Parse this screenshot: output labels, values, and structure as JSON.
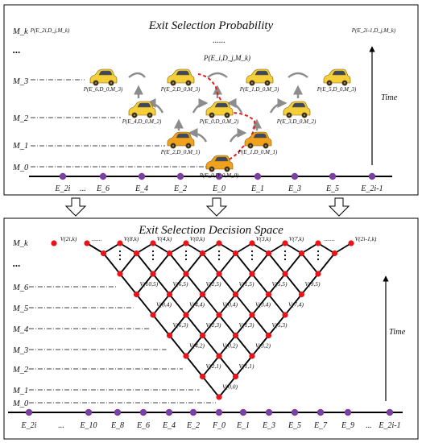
{
  "top": {
    "title": "Exit Selection Probability",
    "dots": "......",
    "prob_label": "P(E_i,D_j,M_k)",
    "time_label": "Time",
    "levels": [
      "M_k",
      "...",
      "M_3",
      "M_2",
      "M_1",
      "M_0"
    ],
    "exits": [
      "E_2i",
      "...",
      "E_6",
      "E_4",
      "E_2",
      "E_0",
      "E_1",
      "E_3",
      "E_5",
      "E_2i-1"
    ],
    "corner_labels": [
      "P(E_2i,D_j,M_k)",
      "P(E_2i-1,D_j,M_k)"
    ],
    "car_labels": {
      "m0": "P(E_0,D_0,M_0)",
      "m1": [
        "P(E_2,D_0,M_1)",
        "P(E_1,D_0,M_1)"
      ],
      "m2": [
        "P(E_4,D_0,M_2)",
        "P(E_0,D_0,M_2)",
        "P(E_3,D_0,M_2)"
      ],
      "m3": [
        "P(E_6,D_0,M_3)",
        "P(E_2,D_0,M_3)",
        "P(E_1,D_0,M_3)",
        "P(E_5,D_0,M_3)"
      ]
    }
  },
  "bottom": {
    "title": "Exit Selection Decision Space",
    "time_label": "Time",
    "levels": [
      "M_k",
      "...",
      "M_6",
      "M_5",
      "M_4",
      "M_3",
      "M_2",
      "M_1",
      "M_0"
    ],
    "exits": [
      "E_2i",
      "...",
      "E_10",
      "E_8",
      "E_6",
      "E_4",
      "E_2",
      "F_0",
      "E_1",
      "E_3",
      "E_5",
      "E_7",
      "E_9",
      "...",
      "E_2i-1"
    ],
    "top_labels": [
      "V(2i,k)",
      ".......",
      "V(8,k)",
      "V(4,k)",
      "V(0,k)",
      "V(3,k)",
      "V(7,k)",
      ".......",
      "V(2i-1,k)"
    ],
    "node_labels": [
      "V(10,5)",
      "V(6,5)",
      "V(2,5)",
      "V(1,5)",
      "V(5,5)",
      "V(9,5)",
      "V(8,4)",
      "V(4,4)",
      "V(0,4)",
      "V(3,4)",
      "V(7,4)",
      "V(6,3)",
      "V(2,3)",
      "V(1,3)",
      "V(5,3)",
      "V(4,2)",
      "V(0,2)",
      "V(3,2)",
      "V(2,1)",
      "V(1,1)",
      "V(0,0)"
    ]
  },
  "colors": {
    "node": "#e8141a",
    "exit_dot": "#7a3fa0",
    "dashed_path": "#e0191b",
    "arrow": "#8c8c8c",
    "car_yellow": "#f5cf3a",
    "car_orange": "#f0a21e"
  }
}
